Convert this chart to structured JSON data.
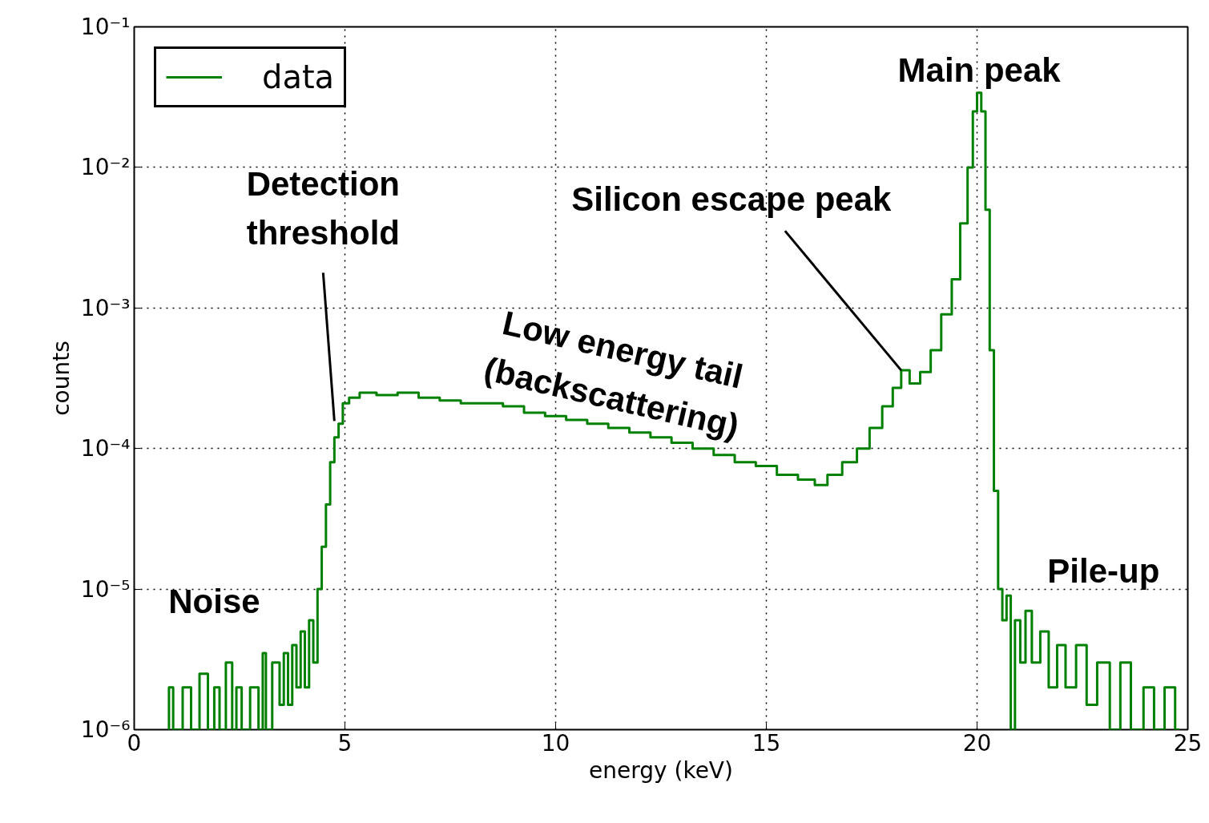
{
  "chart_data": {
    "type": "step",
    "xlabel": "energy (keV)",
    "ylabel": "counts",
    "log": "y",
    "grid": true,
    "legend": "top left",
    "xlim": [
      0,
      25
    ],
    "xticks": [
      0,
      5,
      10,
      15,
      20,
      25
    ],
    "ylim": [
      1e-06,
      0.1
    ],
    "yticks": [
      {
        "value": 1e-06,
        "label": "10⁻⁶"
      },
      {
        "value": 1e-05,
        "label": "10⁻⁵"
      },
      {
        "value": 0.0001,
        "label": "10⁻⁴"
      },
      {
        "value": 0.001,
        "label": "10⁻³"
      },
      {
        "value": 0.01,
        "label": "10⁻²"
      },
      {
        "value": 0.1,
        "label": "10⁻¹"
      }
    ],
    "series": [
      {
        "name": "data",
        "color": "#008000",
        "x": [
          0.8,
          0.85,
          1.0,
          1.3,
          1.4,
          1.7,
          1.8,
          2.0,
          2.05,
          2.3,
          2.35,
          2.5,
          2.6,
          2.9,
          3.0,
          3.1,
          3.15,
          3.4,
          3.5,
          3.6,
          3.7,
          3.8,
          3.9,
          4.0,
          4.1,
          4.2,
          4.3,
          4.4,
          4.5,
          4.6,
          4.7,
          4.8,
          4.9,
          5.0,
          5.2,
          5.5,
          6.0,
          6.5,
          7.0,
          7.5,
          8.0,
          8.5,
          9.0,
          9.5,
          10.0,
          10.5,
          11.0,
          11.5,
          12.0,
          12.5,
          13.0,
          13.5,
          14.0,
          14.5,
          15.0,
          15.5,
          16.0,
          16.3,
          16.6,
          17.0,
          17.3,
          17.6,
          17.9,
          18.1,
          18.3,
          18.5,
          18.8,
          19.0,
          19.3,
          19.5,
          19.7,
          19.85,
          19.95,
          20.05,
          20.15,
          20.25,
          20.35,
          20.45,
          20.55,
          20.65,
          20.75,
          20.85,
          20.95,
          21.1,
          21.2,
          21.4,
          21.6,
          21.8,
          22.0,
          22.2,
          22.5,
          22.7,
          23.0,
          23.3,
          23.5,
          23.8,
          24.1,
          24.3,
          24.6,
          24.8
        ],
        "values": [
          1e-06,
          2e-06,
          1e-06,
          2e-06,
          1e-06,
          2.5e-06,
          1e-06,
          2e-06,
          1e-06,
          3e-06,
          1e-06,
          2e-06,
          1e-06,
          2e-06,
          1e-06,
          3.5e-06,
          1e-06,
          3e-06,
          1.5e-06,
          3.5e-06,
          1.5e-06,
          4e-06,
          2e-06,
          5e-06,
          2e-06,
          6e-06,
          3e-06,
          1e-05,
          2e-05,
          4e-05,
          8e-05,
          0.00012,
          0.00015,
          0.00021,
          0.00023,
          0.00025,
          0.00024,
          0.00025,
          0.00023,
          0.00022,
          0.00021,
          0.00021,
          0.0002,
          0.00018,
          0.00017,
          0.00016,
          0.00015,
          0.00014,
          0.00013,
          0.00012,
          0.00011,
          0.0001,
          9e-05,
          8e-05,
          7.5e-05,
          6.5e-05,
          6e-05,
          5.5e-05,
          6.5e-05,
          8e-05,
          0.0001,
          0.00014,
          0.0002,
          0.00027,
          0.00036,
          0.00029,
          0.00035,
          0.0005,
          0.0009,
          0.0016,
          0.004,
          0.01,
          0.025,
          0.034,
          0.025,
          0.005,
          0.0005,
          5e-05,
          1e-05,
          6e-06,
          9e-06,
          1e-06,
          6e-06,
          3e-06,
          7e-06,
          3e-06,
          5e-06,
          2e-06,
          4e-06,
          2e-06,
          4e-06,
          1.5e-06,
          3e-06,
          1e-06,
          3e-06,
          1e-06,
          2e-06,
          1e-06,
          2e-06,
          1e-06
        ]
      }
    ],
    "annotations": [
      {
        "text": "Detection\nthreshold",
        "x": 4.75,
        "y": 0.000157
      },
      {
        "text": "Silicon escape peak",
        "x": 18.2,
        "y": 0.00036
      },
      {
        "text": "Main peak",
        "x": 20.05,
        "y": 0.034
      },
      {
        "text": "Low energy tail\n(backscattering)",
        "x": 11.46,
        "y": 0.00014
      },
      {
        "text": "Noise",
        "x": 1.9,
        "y": 2e-06
      },
      {
        "text": "Pile-up",
        "x": 23.0,
        "y": 3e-06
      }
    ]
  }
}
